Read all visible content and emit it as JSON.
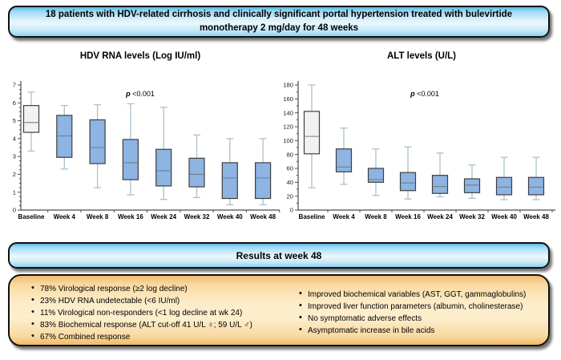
{
  "header": {
    "title": "18 patients with HDV-related cirrhosis and clinically significant portal hypertension treated with bulevirtide monotherapy 2 mg/day for 48 weeks"
  },
  "results": {
    "banner": "Results at week 48",
    "left_items": [
      "78% Virological response (≥2 log decline)",
      "23% HDV RNA undetectable (<6 IU/ml)",
      "11% Virological non-responders (<1 log decline at wk 24)",
      "83% Biochemical response (ALT cut-off 41 U/L ♀; 59 U/L ♂)",
      "67% Combined response"
    ],
    "right_items": [
      "Improved biochemical variables (AST, GGT, gammaglobulins)",
      "Improved liver function parameters (albumin, cholinesterase)",
      "No symptomatic adverse effects",
      "Asymptomatic increase in bile acids"
    ]
  },
  "colors": {
    "banner_blue": "#8fd2f0",
    "results_orange": "#fdecc8",
    "box_blue": "#8db4e2",
    "box_baseline": "#f2f2f2",
    "box_border": "#3f3f3f",
    "whisker": "#abc1cc",
    "median": "#708090",
    "axis": "#4d4d4d",
    "tick_text": "#1a1a1a"
  },
  "chart_data": [
    {
      "type": "box",
      "title": "HDV RNA levels (Log IU/ml)",
      "p_label": {
        "var": "p",
        "value": "<0.001"
      },
      "categories": [
        "Baseline",
        "Week 4",
        "Week 8",
        "Week 16",
        "Week 24",
        "Week 32",
        "Week 40",
        "Week 48"
      ],
      "ylim": [
        0,
        7
      ],
      "ytick_major": 1,
      "ytick_minor": 0.25,
      "grid": false,
      "series": [
        {
          "low": 3.3,
          "q1": 4.35,
          "median": 4.9,
          "q3": 5.85,
          "high": 6.6,
          "fill": "baseline"
        },
        {
          "low": 2.3,
          "q1": 2.95,
          "median": 4.15,
          "q3": 5.3,
          "high": 5.85,
          "fill": "treated"
        },
        {
          "low": 1.25,
          "q1": 2.6,
          "median": 3.5,
          "q3": 5.05,
          "high": 5.9,
          "fill": "treated"
        },
        {
          "low": 0.85,
          "q1": 1.7,
          "median": 2.65,
          "q3": 3.95,
          "high": 5.95,
          "fill": "treated"
        },
        {
          "low": 0.6,
          "q1": 1.35,
          "median": 2.2,
          "q3": 3.4,
          "high": 5.75,
          "fill": "treated"
        },
        {
          "low": 0.7,
          "q1": 1.3,
          "median": 2.0,
          "q3": 2.9,
          "high": 4.2,
          "fill": "treated"
        },
        {
          "low": 0.3,
          "q1": 0.65,
          "median": 1.8,
          "q3": 2.65,
          "high": 4.0,
          "fill": "treated"
        },
        {
          "low": 0.3,
          "q1": 0.65,
          "median": 1.8,
          "q3": 2.65,
          "high": 4.0,
          "fill": "treated"
        }
      ]
    },
    {
      "type": "box",
      "title": "ALT levels (U/L)",
      "p_label": {
        "var": "p",
        "value": "<0.001"
      },
      "categories": [
        "Baseline",
        "Week 4",
        "Week 8",
        "Week 16",
        "Week 24",
        "Week 32",
        "Week 40",
        "Week 48"
      ],
      "ylim": [
        0,
        180
      ],
      "ytick_major": 20,
      "ytick_minor": 10,
      "grid": false,
      "series": [
        {
          "low": 32,
          "q1": 81,
          "median": 106,
          "q3": 142,
          "high": 180,
          "fill": "baseline"
        },
        {
          "low": 37,
          "q1": 55,
          "median": 62,
          "q3": 88,
          "high": 118,
          "fill": "treated"
        },
        {
          "low": 21,
          "q1": 40,
          "median": 44,
          "q3": 60,
          "high": 88,
          "fill": "treated"
        },
        {
          "low": 16,
          "q1": 28,
          "median": 39,
          "q3": 54,
          "high": 91,
          "fill": "treated"
        },
        {
          "low": 19,
          "q1": 24,
          "median": 34,
          "q3": 50,
          "high": 82,
          "fill": "treated"
        },
        {
          "low": 17,
          "q1": 25,
          "median": 36,
          "q3": 45,
          "high": 65,
          "fill": "treated"
        },
        {
          "low": 15,
          "q1": 22,
          "median": 33,
          "q3": 47,
          "high": 76,
          "fill": "treated"
        },
        {
          "low": 15,
          "q1": 22,
          "median": 33,
          "q3": 47,
          "high": 76,
          "fill": "treated"
        }
      ]
    }
  ]
}
